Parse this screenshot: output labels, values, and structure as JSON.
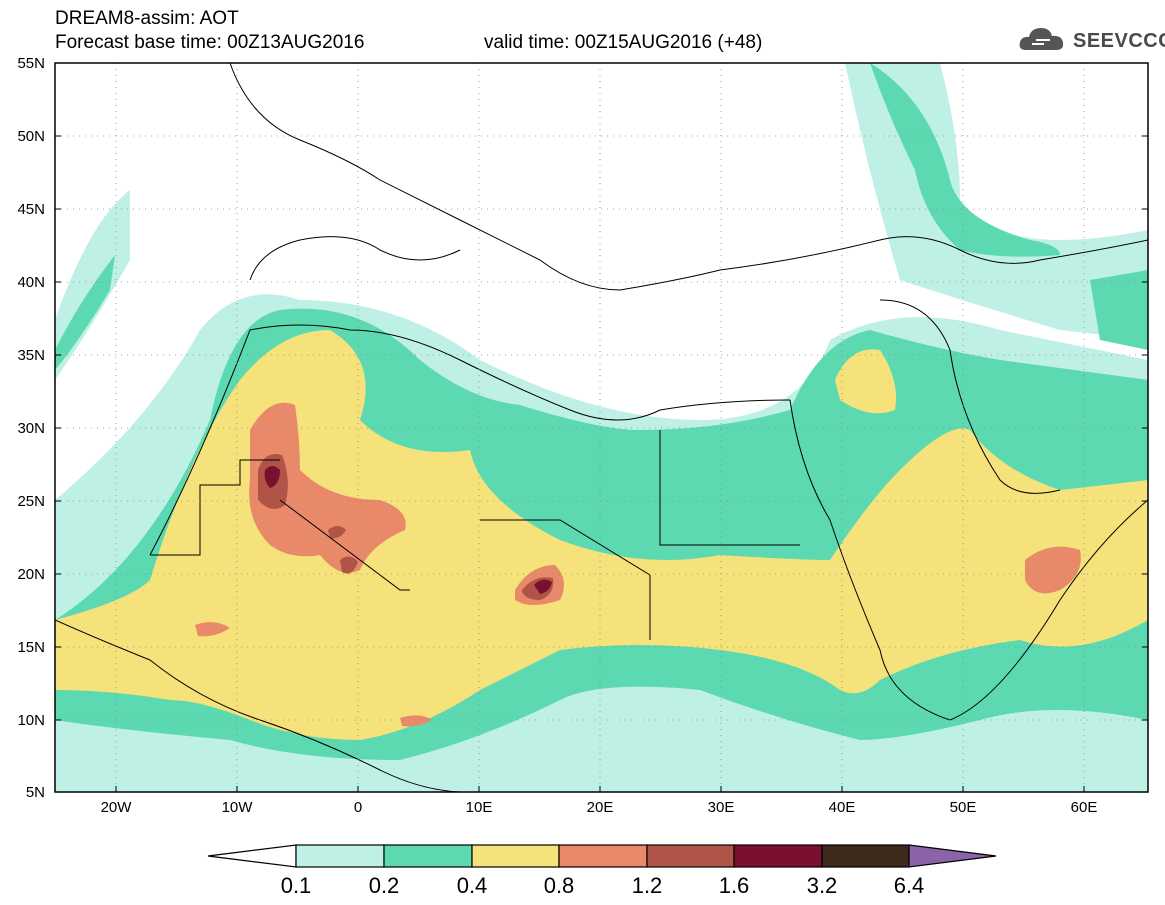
{
  "header": {
    "title": "DREAM8-assim: AOT",
    "base_time": "Forecast base time: 00Z13AUG2016",
    "valid_time": "valid time: 00Z15AUG2016 (+48)"
  },
  "logo": {
    "text": "SEEVCCC",
    "icon": "cloud-logo-icon"
  },
  "axes": {
    "lat_labels": [
      "55N",
      "50N",
      "45N",
      "40N",
      "35N",
      "30N",
      "25N",
      "20N",
      "15N",
      "10N",
      "5N"
    ],
    "lon_labels": [
      "20W",
      "10W",
      "0",
      "10E",
      "20E",
      "30E",
      "40E",
      "50E",
      "60E"
    ]
  },
  "colorbar": {
    "labels": [
      "0.1",
      "0.2",
      "0.4",
      "0.8",
      "1.2",
      "1.6",
      "3.2",
      "6.4"
    ],
    "colors": [
      "#bff0e6",
      "#5cd9b0",
      "#f5e27a",
      "#e8896a",
      "#b05448",
      "#7a1030",
      "#3d2a1a",
      "#8a63a8"
    ]
  },
  "map": {
    "background": "#ffffff",
    "grid": "dotted"
  }
}
